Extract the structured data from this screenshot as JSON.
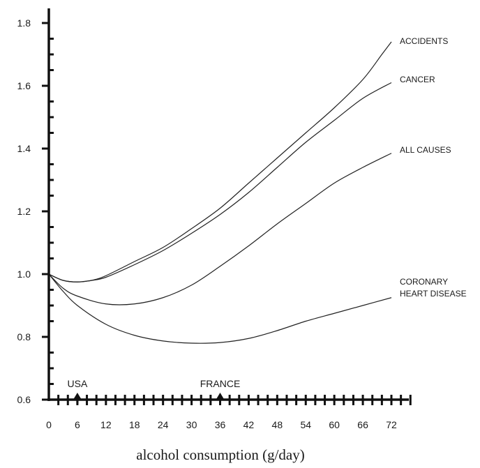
{
  "chart_data": {
    "type": "line",
    "title": "",
    "xlabel": "alcohol consumption (g/day)",
    "ylabel": "",
    "xlim": [
      0,
      72
    ],
    "ylim": [
      0.6,
      1.8
    ],
    "x_ticks": [
      0,
      6,
      12,
      18,
      24,
      30,
      36,
      42,
      48,
      54,
      60,
      66,
      72
    ],
    "y_ticks": [
      0.6,
      0.8,
      1.0,
      1.2,
      1.4,
      1.6,
      1.8
    ],
    "y_tick_labels": [
      "0.6",
      "0.8",
      "1.0",
      "1.2",
      "1.4",
      "1.6",
      "1.8"
    ],
    "grid": false,
    "legend": "inline labels at right end of each curve",
    "series": [
      {
        "name": "ACCIDENTS",
        "x": [
          0,
          3,
          6,
          9,
          12,
          18,
          24,
          30,
          36,
          42,
          48,
          54,
          60,
          66,
          70,
          72
        ],
        "values": [
          1.0,
          0.98,
          0.975,
          0.98,
          0.995,
          1.04,
          1.085,
          1.145,
          1.21,
          1.29,
          1.37,
          1.45,
          1.53,
          1.62,
          1.7,
          1.74
        ]
      },
      {
        "name": "CANCER",
        "x": [
          0,
          3,
          6,
          9,
          12,
          18,
          24,
          30,
          36,
          42,
          48,
          54,
          60,
          66,
          72
        ],
        "values": [
          1.0,
          0.98,
          0.975,
          0.98,
          0.99,
          1.03,
          1.075,
          1.13,
          1.19,
          1.26,
          1.34,
          1.42,
          1.49,
          1.56,
          1.61
        ]
      },
      {
        "name": "ALL CAUSES",
        "x": [
          0,
          3,
          6,
          12,
          18,
          24,
          30,
          36,
          42,
          48,
          54,
          60,
          66,
          72
        ],
        "values": [
          1.0,
          0.955,
          0.93,
          0.905,
          0.905,
          0.925,
          0.965,
          1.025,
          1.09,
          1.16,
          1.225,
          1.29,
          1.34,
          1.385
        ]
      },
      {
        "name": "CORONARY HEART DISEASE",
        "label_lines": [
          "CORONARY",
          "HEART DISEASE"
        ],
        "x": [
          0,
          3,
          6,
          12,
          18,
          24,
          30,
          36,
          42,
          48,
          54,
          60,
          66,
          72
        ],
        "values": [
          1.0,
          0.945,
          0.9,
          0.84,
          0.805,
          0.787,
          0.78,
          0.782,
          0.795,
          0.82,
          0.85,
          0.875,
          0.9,
          0.925
        ]
      }
    ],
    "annotations": [
      {
        "text": "USA",
        "x": 6
      },
      {
        "text": "FRANCE",
        "x": 36
      }
    ]
  }
}
